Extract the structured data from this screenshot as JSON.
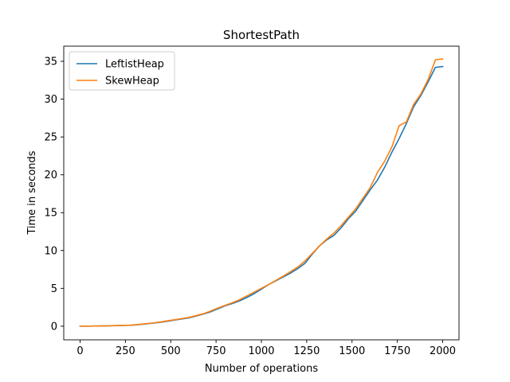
{
  "chart_data": {
    "type": "line",
    "title": "ShortestPath",
    "xlabel": "Number of operations",
    "ylabel": "Time in seconds",
    "xlim": [
      -90,
      2090
    ],
    "ylim": [
      -1.8,
      37.0
    ],
    "xticks": [
      0,
      250,
      500,
      750,
      1000,
      1250,
      1500,
      1750,
      2000
    ],
    "yticks": [
      0,
      5,
      10,
      15,
      20,
      25,
      30,
      35
    ],
    "grid": false,
    "legend_position": "top-left",
    "series": [
      {
        "name": "LeftistHeap",
        "color": "#1f77b4",
        "x": [
          0,
          40,
          80,
          120,
          160,
          200,
          240,
          280,
          320,
          360,
          400,
          440,
          480,
          520,
          560,
          600,
          640,
          680,
          720,
          760,
          800,
          840,
          880,
          920,
          960,
          1000,
          1040,
          1080,
          1120,
          1160,
          1200,
          1240,
          1280,
          1320,
          1360,
          1400,
          1440,
          1480,
          1520,
          1560,
          1600,
          1640,
          1680,
          1720,
          1760,
          1800,
          1840,
          1880,
          1920,
          1960,
          2000
        ],
        "y": [
          0.0,
          0.0,
          0.02,
          0.03,
          0.05,
          0.08,
          0.1,
          0.13,
          0.2,
          0.3,
          0.4,
          0.5,
          0.65,
          0.8,
          0.95,
          1.1,
          1.35,
          1.6,
          1.9,
          2.3,
          2.7,
          3.0,
          3.35,
          3.8,
          4.3,
          4.9,
          5.5,
          6.0,
          6.5,
          7.0,
          7.6,
          8.3,
          9.5,
          10.6,
          11.4,
          12.0,
          13.0,
          14.2,
          15.2,
          16.6,
          18.0,
          19.3,
          21.0,
          23.0,
          24.8,
          26.8,
          29.0,
          30.5,
          32.3,
          34.2,
          34.3
        ]
      },
      {
        "name": "SkewHeap",
        "color": "#ff7f0e",
        "x": [
          0,
          40,
          80,
          120,
          160,
          200,
          240,
          280,
          320,
          360,
          400,
          440,
          480,
          520,
          560,
          600,
          640,
          680,
          720,
          760,
          800,
          840,
          880,
          920,
          960,
          1000,
          1040,
          1080,
          1120,
          1160,
          1200,
          1240,
          1280,
          1320,
          1360,
          1400,
          1440,
          1480,
          1520,
          1560,
          1600,
          1640,
          1680,
          1720,
          1760,
          1800,
          1840,
          1880,
          1920,
          1960,
          2000
        ],
        "y": [
          0.0,
          0.0,
          0.02,
          0.03,
          0.06,
          0.09,
          0.11,
          0.14,
          0.22,
          0.32,
          0.42,
          0.55,
          0.7,
          0.85,
          1.0,
          1.15,
          1.4,
          1.65,
          2.0,
          2.4,
          2.75,
          3.1,
          3.5,
          4.0,
          4.5,
          5.0,
          5.5,
          6.05,
          6.6,
          7.2,
          7.8,
          8.6,
          9.6,
          10.6,
          11.5,
          12.3,
          13.3,
          14.4,
          15.5,
          16.9,
          18.3,
          20.3,
          21.8,
          23.7,
          26.5,
          27.0,
          29.3,
          30.7,
          32.6,
          35.2,
          35.3
        ]
      }
    ]
  }
}
